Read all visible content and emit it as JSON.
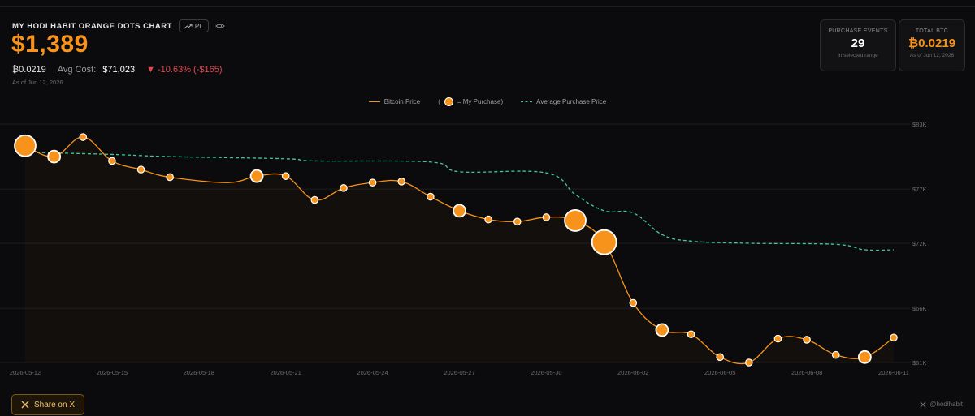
{
  "header": {
    "title": "MY HODLHABIT ORANGE DOTS CHART",
    "pl_label": "PL",
    "value": "$1,389",
    "btc_amount": "₿0.0219",
    "avg_cost_label": "Avg Cost:",
    "avg_cost_value": "$71,023",
    "change": "▼ -10.63% (-$165)",
    "as_of": "As of Jun 12, 2026"
  },
  "cards": {
    "purchase_events": {
      "label": "PURCHASE EVENTS",
      "value": "29",
      "sub": "in selected range"
    },
    "total_btc": {
      "label": "TOTAL BTC",
      "value": "₿0.0219",
      "sub": "As of Jun 12, 2026"
    }
  },
  "legend": {
    "price": "Bitcoin Price",
    "purchase_open": "(",
    "purchase_close": "= My Purchase)",
    "avg": "Average Purchase Price"
  },
  "footer": {
    "share": "Share on X",
    "credit": "@hodlhabit"
  },
  "colors": {
    "accent": "#f7931a",
    "avg_line": "#3fc99a",
    "negative": "#e5484d",
    "background": "#0b0b0d"
  },
  "chart_data": {
    "type": "line",
    "ylim": [
      60000,
      84000
    ],
    "y_ticks": [
      61000,
      66000,
      72000,
      77000,
      83000
    ],
    "y_tick_labels": [
      "$61K",
      "$66K",
      "$72K",
      "$77K",
      "$83K"
    ],
    "x_tick_labels": [
      "2026-05-12",
      "2026-05-15",
      "2026-05-18",
      "2026-05-21",
      "2026-05-24",
      "2026-05-27",
      "2026-05-30",
      "2026-06-02",
      "2026-06-05",
      "2026-06-08",
      "2026-06-11"
    ],
    "x_range": [
      "2026-05-12",
      "2026-06-11"
    ],
    "grid": true,
    "legend_position": "top-center",
    "series": [
      {
        "name": "Bitcoin Price",
        "color": "#f7931a",
        "points": [
          {
            "x": "2026-05-12",
            "y": 81000,
            "purchase": "large"
          },
          {
            "x": "2026-05-13",
            "y": 80000,
            "purchase": "medium"
          },
          {
            "x": "2026-05-14",
            "y": 81800,
            "purchase": "small"
          },
          {
            "x": "2026-05-15",
            "y": 79600,
            "purchase": "small"
          },
          {
            "x": "2026-05-16",
            "y": 78800,
            "purchase": "small"
          },
          {
            "x": "2026-05-17",
            "y": 78100,
            "purchase": "small"
          },
          {
            "x": "2026-05-19",
            "y": 77600,
            "purchase": "none"
          },
          {
            "x": "2026-05-20",
            "y": 78200,
            "purchase": "medium"
          },
          {
            "x": "2026-05-21",
            "y": 78200,
            "purchase": "small"
          },
          {
            "x": "2026-05-22",
            "y": 76000,
            "purchase": "small"
          },
          {
            "x": "2026-05-23",
            "y": 77100,
            "purchase": "small"
          },
          {
            "x": "2026-05-24",
            "y": 77600,
            "purchase": "small"
          },
          {
            "x": "2026-05-25",
            "y": 77700,
            "purchase": "small"
          },
          {
            "x": "2026-05-26",
            "y": 76300,
            "purchase": "small"
          },
          {
            "x": "2026-05-27",
            "y": 75000,
            "purchase": "medium"
          },
          {
            "x": "2026-05-28",
            "y": 74200,
            "purchase": "small"
          },
          {
            "x": "2026-05-29",
            "y": 74000,
            "purchase": "small"
          },
          {
            "x": "2026-05-30",
            "y": 74400,
            "purchase": "small"
          },
          {
            "x": "2026-05-31",
            "y": 74100,
            "purchase": "large"
          },
          {
            "x": "2026-06-01",
            "y": 72100,
            "purchase": "xlarge"
          },
          {
            "x": "2026-06-02",
            "y": 66500,
            "purchase": "small"
          },
          {
            "x": "2026-06-03",
            "y": 64000,
            "purchase": "medium"
          },
          {
            "x": "2026-06-04",
            "y": 63600,
            "purchase": "small"
          },
          {
            "x": "2026-06-05",
            "y": 61500,
            "purchase": "small"
          },
          {
            "x": "2026-06-06",
            "y": 61000,
            "purchase": "small"
          },
          {
            "x": "2026-06-07",
            "y": 63200,
            "purchase": "small"
          },
          {
            "x": "2026-06-08",
            "y": 63100,
            "purchase": "small"
          },
          {
            "x": "2026-06-09",
            "y": 61700,
            "purchase": "small"
          },
          {
            "x": "2026-06-10",
            "y": 61500,
            "purchase": "medium"
          },
          {
            "x": "2026-06-11",
            "y": 63300,
            "purchase": "small"
          }
        ]
      },
      {
        "name": "Average Purchase Price",
        "color": "#3fc99a",
        "dashed": true,
        "points": [
          {
            "x": "2026-05-12",
            "y": 80400
          },
          {
            "x": "2026-05-15",
            "y": 80200
          },
          {
            "x": "2026-05-17",
            "y": 80000
          },
          {
            "x": "2026-05-21",
            "y": 79800
          },
          {
            "x": "2026-05-22",
            "y": 79600
          },
          {
            "x": "2026-05-26",
            "y": 79500
          },
          {
            "x": "2026-05-27",
            "y": 78600
          },
          {
            "x": "2026-05-30",
            "y": 78500
          },
          {
            "x": "2026-05-31",
            "y": 76500
          },
          {
            "x": "2026-06-01",
            "y": 75000
          },
          {
            "x": "2026-06-02",
            "y": 74800
          },
          {
            "x": "2026-06-03",
            "y": 72800
          },
          {
            "x": "2026-06-04",
            "y": 72200
          },
          {
            "x": "2026-06-06",
            "y": 72000
          },
          {
            "x": "2026-06-09",
            "y": 71900
          },
          {
            "x": "2026-06-10",
            "y": 71400
          },
          {
            "x": "2026-06-11",
            "y": 71400
          }
        ]
      }
    ]
  }
}
